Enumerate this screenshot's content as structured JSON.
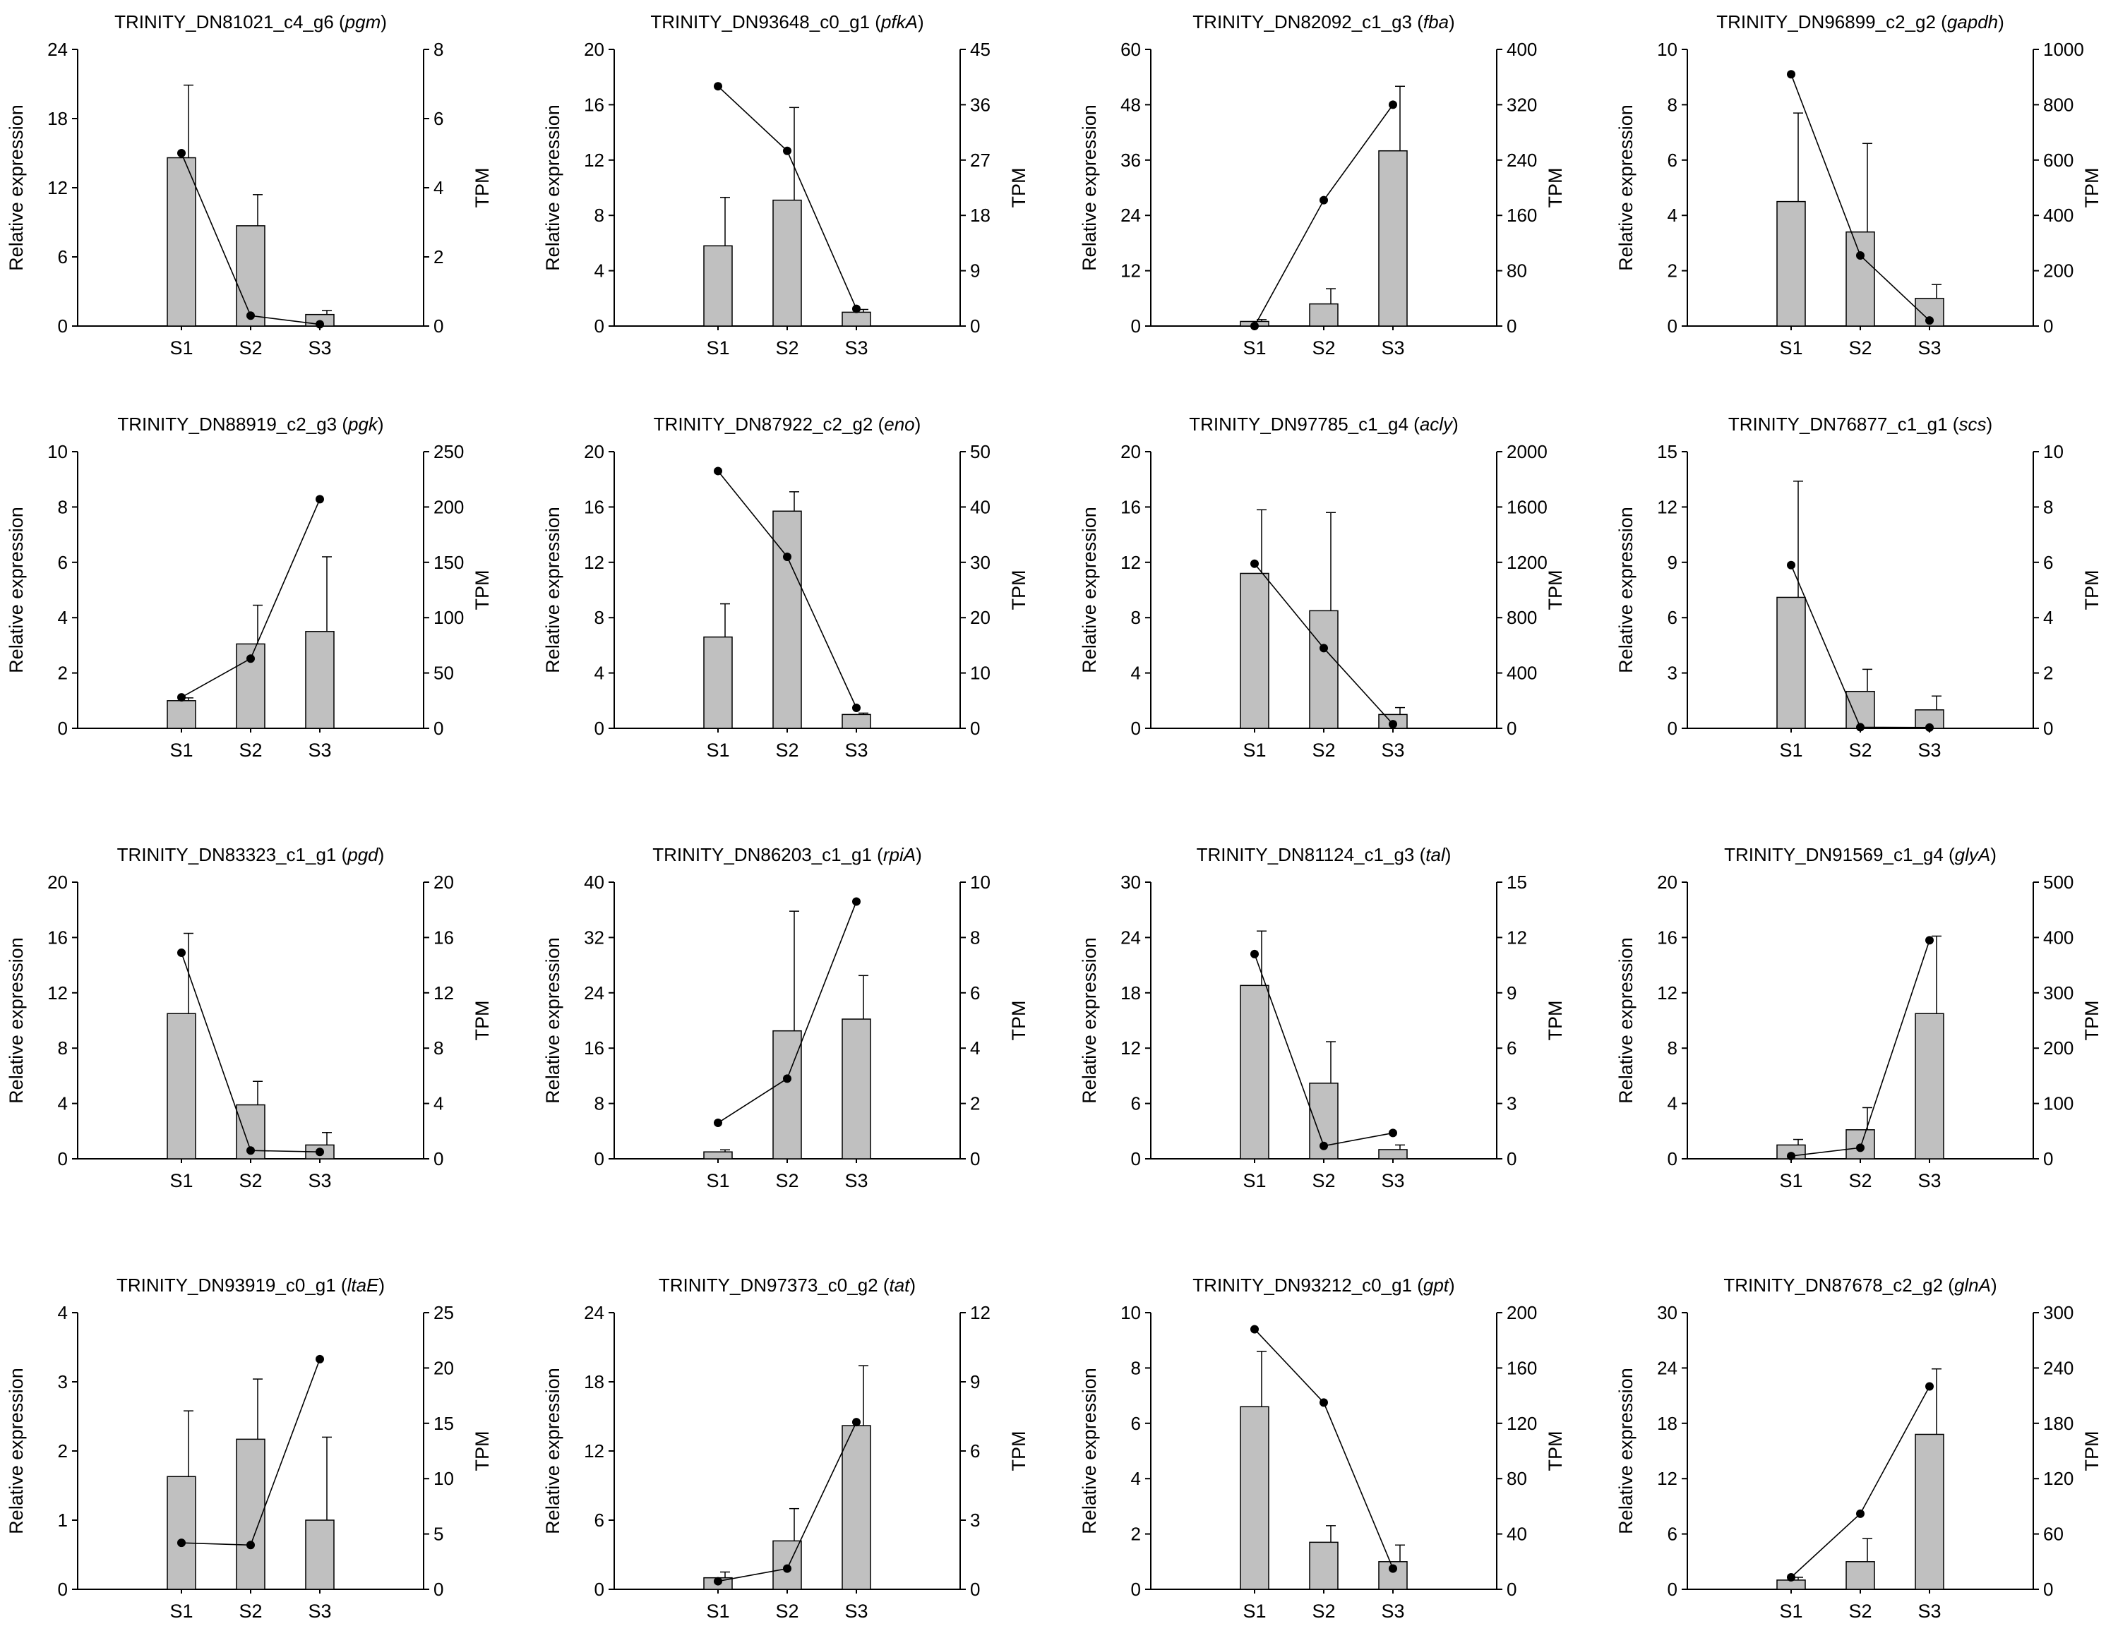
{
  "chart_data": [
    {
      "type": "bar+line",
      "title": "TRINITY_DN81021_c4_g6",
      "gene": "pgm",
      "ylabel": "Relative expression",
      "y2label": "TPM",
      "categories": [
        "S1",
        "S2",
        "S3"
      ],
      "ylim": [
        0,
        24
      ],
      "yticks": [
        0,
        6,
        12,
        18,
        24
      ],
      "y2lim": [
        0,
        8
      ],
      "y2ticks": [
        0,
        2,
        4,
        6,
        8
      ],
      "series": [
        {
          "axis": "left",
          "kind": "bar",
          "values": [
            14.6,
            8.7,
            1.0
          ],
          "errors": [
            6.3,
            2.7,
            0.35
          ]
        },
        {
          "axis": "right",
          "kind": "line",
          "values": [
            5.0,
            0.3,
            0.05
          ]
        }
      ]
    },
    {
      "type": "bar+line",
      "title": "TRINITY_DN93648_c0_g1",
      "gene": "pfkA",
      "ylabel": "Relative expression",
      "y2label": "TPM",
      "categories": [
        "S1",
        "S2",
        "S3"
      ],
      "ylim": [
        0,
        20
      ],
      "yticks": [
        0,
        4,
        8,
        12,
        16,
        20
      ],
      "y2lim": [
        0,
        45
      ],
      "y2ticks": [
        0,
        9,
        18,
        27,
        36,
        45
      ],
      "series": [
        {
          "axis": "left",
          "kind": "bar",
          "values": [
            5.8,
            9.1,
            1.0
          ],
          "errors": [
            3.5,
            6.7,
            0.2
          ]
        },
        {
          "axis": "right",
          "kind": "line",
          "values": [
            39.0,
            28.5,
            2.8
          ]
        }
      ]
    },
    {
      "type": "bar+line",
      "title": "TRINITY_DN82092_c1_g3",
      "gene": "fba",
      "ylabel": "Relative expression",
      "y2label": "TPM",
      "categories": [
        "S1",
        "S2",
        "S3"
      ],
      "ylim": [
        0,
        60
      ],
      "yticks": [
        0,
        12,
        24,
        36,
        48,
        60
      ],
      "y2lim": [
        0,
        400
      ],
      "y2ticks": [
        0,
        80,
        160,
        240,
        320,
        400
      ],
      "series": [
        {
          "axis": "left",
          "kind": "bar",
          "values": [
            1.0,
            4.8,
            38.0
          ],
          "errors": [
            0.4,
            3.3,
            14.0
          ]
        },
        {
          "axis": "right",
          "kind": "line",
          "values": [
            0,
            182,
            320
          ]
        }
      ]
    },
    {
      "type": "bar+line",
      "title": "TRINITY_DN96899_c2_g2",
      "gene": "gapdh",
      "ylabel": "Relative expression",
      "y2label": "TPM",
      "categories": [
        "S1",
        "S2",
        "S3"
      ],
      "ylim": [
        0,
        10
      ],
      "yticks": [
        0,
        2,
        4,
        6,
        8,
        10
      ],
      "y2lim": [
        0,
        1000
      ],
      "y2ticks": [
        0,
        200,
        400,
        600,
        800,
        1000
      ],
      "series": [
        {
          "axis": "left",
          "kind": "bar",
          "values": [
            4.5,
            3.4,
            1.0
          ],
          "errors": [
            3.2,
            3.2,
            0.5
          ]
        },
        {
          "axis": "right",
          "kind": "line",
          "values": [
            910,
            255,
            20
          ]
        }
      ]
    },
    {
      "type": "bar+line",
      "title": "TRINITY_DN88919_c2_g3",
      "gene": "pgk",
      "ylabel": "Relative expression",
      "y2label": "TPM",
      "categories": [
        "S1",
        "S2",
        "S3"
      ],
      "ylim": [
        0,
        10
      ],
      "yticks": [
        0,
        2,
        4,
        6,
        8,
        10
      ],
      "y2lim": [
        0,
        250
      ],
      "y2ticks": [
        0,
        50,
        100,
        150,
        200,
        250
      ],
      "series": [
        {
          "axis": "left",
          "kind": "bar",
          "values": [
            1.0,
            3.05,
            3.5
          ],
          "errors": [
            0.1,
            1.4,
            2.7
          ]
        },
        {
          "axis": "right",
          "kind": "line",
          "values": [
            28,
            63,
            207
          ]
        }
      ]
    },
    {
      "type": "bar+line",
      "title": "TRINITY_DN87922_c2_g2",
      "gene": "eno",
      "ylabel": "Relative expression",
      "y2label": "TPM",
      "categories": [
        "S1",
        "S2",
        "S3"
      ],
      "ylim": [
        0,
        20
      ],
      "yticks": [
        0,
        4,
        8,
        12,
        16,
        20
      ],
      "y2lim": [
        0,
        50
      ],
      "y2ticks": [
        0,
        10,
        20,
        30,
        40,
        50
      ],
      "series": [
        {
          "axis": "left",
          "kind": "bar",
          "values": [
            6.6,
            15.7,
            1.0
          ],
          "errors": [
            2.4,
            1.4,
            0.1
          ]
        },
        {
          "axis": "right",
          "kind": "line",
          "values": [
            46.5,
            31,
            3.7
          ]
        }
      ]
    },
    {
      "type": "bar+line",
      "title": "TRINITY_DN97785_c1_g4",
      "gene": "acly",
      "ylabel": "Relative expression",
      "y2label": "TPM",
      "categories": [
        "S1",
        "S2",
        "S3"
      ],
      "ylim": [
        0,
        20
      ],
      "yticks": [
        0,
        4,
        8,
        12,
        16,
        20
      ],
      "y2lim": [
        0,
        2000
      ],
      "y2ticks": [
        0,
        400,
        800,
        1200,
        1600,
        2000
      ],
      "series": [
        {
          "axis": "left",
          "kind": "bar",
          "values": [
            11.2,
            8.5,
            1.0
          ],
          "errors": [
            4.6,
            7.1,
            0.5
          ]
        },
        {
          "axis": "right",
          "kind": "line",
          "values": [
            1190,
            580,
            30
          ]
        }
      ]
    },
    {
      "type": "bar+line",
      "title": "TRINITY_DN76877_c1_g1",
      "gene": "scs",
      "ylabel": "Relative expression",
      "y2label": "TPM",
      "categories": [
        "S1",
        "S2",
        "S3"
      ],
      "ylim": [
        0,
        15
      ],
      "yticks": [
        0,
        3,
        6,
        9,
        12,
        15
      ],
      "y2lim": [
        0,
        10
      ],
      "y2ticks": [
        0,
        2,
        4,
        6,
        8,
        10
      ],
      "series": [
        {
          "axis": "left",
          "kind": "bar",
          "values": [
            7.1,
            2.0,
            1.0
          ],
          "errors": [
            6.3,
            1.2,
            0.75
          ]
        },
        {
          "axis": "right",
          "kind": "line",
          "values": [
            5.9,
            0.04,
            0.03
          ]
        }
      ]
    },
    {
      "type": "bar+line",
      "title": "TRINITY_DN83323_c1_g1",
      "gene": "pgd",
      "ylabel": "Relative expression",
      "y2label": "TPM",
      "categories": [
        "S1",
        "S2",
        "S3"
      ],
      "ylim": [
        0,
        20
      ],
      "yticks": [
        0,
        4,
        8,
        12,
        16,
        20
      ],
      "y2lim": [
        0,
        20
      ],
      "y2ticks": [
        0,
        4,
        8,
        12,
        16,
        20
      ],
      "series": [
        {
          "axis": "left",
          "kind": "bar",
          "values": [
            10.5,
            3.9,
            1.0
          ],
          "errors": [
            5.8,
            1.7,
            0.9
          ]
        },
        {
          "axis": "right",
          "kind": "line",
          "values": [
            14.9,
            0.6,
            0.5
          ]
        }
      ]
    },
    {
      "type": "bar+line",
      "title": "TRINITY_DN86203_c1_g1",
      "gene": "rpiA",
      "ylabel": "Relative expression",
      "y2label": "TPM",
      "categories": [
        "S1",
        "S2",
        "S3"
      ],
      "ylim": [
        0,
        40
      ],
      "yticks": [
        0,
        8,
        16,
        24,
        32,
        40
      ],
      "y2lim": [
        0,
        10
      ],
      "y2ticks": [
        0,
        2,
        4,
        6,
        8,
        10
      ],
      "series": [
        {
          "axis": "left",
          "kind": "bar",
          "values": [
            1.0,
            18.5,
            20.2
          ],
          "errors": [
            0.3,
            17.3,
            6.3
          ]
        },
        {
          "axis": "right",
          "kind": "line",
          "values": [
            1.3,
            2.9,
            9.3
          ]
        }
      ]
    },
    {
      "type": "bar+line",
      "title": "TRINITY_DN81124_c1_g3",
      "gene": "tal",
      "ylabel": "Relative expression",
      "y2label": "TPM",
      "categories": [
        "S1",
        "S2",
        "S3"
      ],
      "ylim": [
        0,
        30
      ],
      "yticks": [
        0,
        6,
        12,
        18,
        24,
        30
      ],
      "y2lim": [
        0,
        15
      ],
      "y2ticks": [
        0,
        3,
        6,
        9,
        12,
        15
      ],
      "series": [
        {
          "axis": "left",
          "kind": "bar",
          "values": [
            18.8,
            8.2,
            1.0
          ],
          "errors": [
            5.9,
            4.5,
            0.5
          ]
        },
        {
          "axis": "right",
          "kind": "line",
          "values": [
            11.1,
            0.7,
            1.4
          ]
        }
      ]
    },
    {
      "type": "bar+line",
      "title": "TRINITY_DN91569_c1_g4",
      "gene": "glyA",
      "ylabel": "Relative expression",
      "y2label": "TPM",
      "categories": [
        "S1",
        "S2",
        "S3"
      ],
      "ylim": [
        0,
        20
      ],
      "yticks": [
        0,
        4,
        8,
        12,
        16,
        20
      ],
      "y2lim": [
        0,
        500
      ],
      "y2ticks": [
        0,
        100,
        200,
        300,
        400,
        500
      ],
      "series": [
        {
          "axis": "left",
          "kind": "bar",
          "values": [
            1.0,
            2.1,
            10.5
          ],
          "errors": [
            0.4,
            1.6,
            5.6
          ]
        },
        {
          "axis": "right",
          "kind": "line",
          "values": [
            5,
            20,
            395
          ]
        }
      ]
    },
    {
      "type": "bar+line",
      "title": "TRINITY_DN93919_c0_g1",
      "gene": "ltaE",
      "ylabel": "Relative expression",
      "y2label": "TPM",
      "categories": [
        "S1",
        "S2",
        "S3"
      ],
      "ylim": [
        0,
        4
      ],
      "yticks": [
        0,
        1,
        2,
        3,
        4
      ],
      "y2lim": [
        0,
        25
      ],
      "y2ticks": [
        0,
        5,
        10,
        15,
        20,
        25
      ],
      "series": [
        {
          "axis": "left",
          "kind": "bar",
          "values": [
            1.63,
            2.17,
            1.0
          ],
          "errors": [
            0.95,
            0.87,
            1.2
          ]
        },
        {
          "axis": "right",
          "kind": "line",
          "values": [
            4.2,
            4.0,
            20.8
          ]
        }
      ]
    },
    {
      "type": "bar+line",
      "title": "TRINITY_DN97373_c0_g2",
      "gene": "tat",
      "ylabel": "Relative expression",
      "y2label": "TPM",
      "categories": [
        "S1",
        "S2",
        "S3"
      ],
      "ylim": [
        0,
        24
      ],
      "yticks": [
        0,
        6,
        12,
        18,
        24
      ],
      "y2lim": [
        0,
        12
      ],
      "y2ticks": [
        0,
        3,
        6,
        9,
        12
      ],
      "series": [
        {
          "axis": "left",
          "kind": "bar",
          "values": [
            1.0,
            4.2,
            14.2
          ],
          "errors": [
            0.5,
            2.8,
            5.2
          ]
        },
        {
          "axis": "right",
          "kind": "line",
          "values": [
            0.35,
            0.9,
            7.25
          ]
        }
      ]
    },
    {
      "type": "bar+line",
      "title": "TRINITY_DN93212_c0_g1",
      "gene": "gpt",
      "ylabel": "Relative expression",
      "y2label": "TPM",
      "categories": [
        "S1",
        "S2",
        "S3"
      ],
      "ylim": [
        0,
        10
      ],
      "yticks": [
        0,
        2,
        4,
        6,
        8,
        10
      ],
      "y2lim": [
        0,
        200
      ],
      "y2ticks": [
        0,
        40,
        80,
        120,
        160,
        200
      ],
      "series": [
        {
          "axis": "left",
          "kind": "bar",
          "values": [
            6.6,
            1.7,
            1.0
          ],
          "errors": [
            2.0,
            0.6,
            0.6
          ]
        },
        {
          "axis": "right",
          "kind": "line",
          "values": [
            188,
            135,
            15
          ]
        }
      ]
    },
    {
      "type": "bar+line",
      "title": "TRINITY_DN87678_c2_g2",
      "gene": "glnA",
      "ylabel": "Relative expression",
      "y2label": "TPM",
      "categories": [
        "S1",
        "S2",
        "S3"
      ],
      "ylim": [
        0,
        30
      ],
      "yticks": [
        0,
        6,
        12,
        18,
        24,
        30
      ],
      "y2lim": [
        0,
        300
      ],
      "y2ticks": [
        0,
        60,
        120,
        180,
        240,
        300
      ],
      "series": [
        {
          "axis": "left",
          "kind": "bar",
          "values": [
            1.0,
            3.0,
            16.8
          ],
          "errors": [
            0.3,
            2.5,
            7.1
          ]
        },
        {
          "axis": "right",
          "kind": "line",
          "values": [
            13,
            82,
            220
          ]
        }
      ]
    }
  ]
}
